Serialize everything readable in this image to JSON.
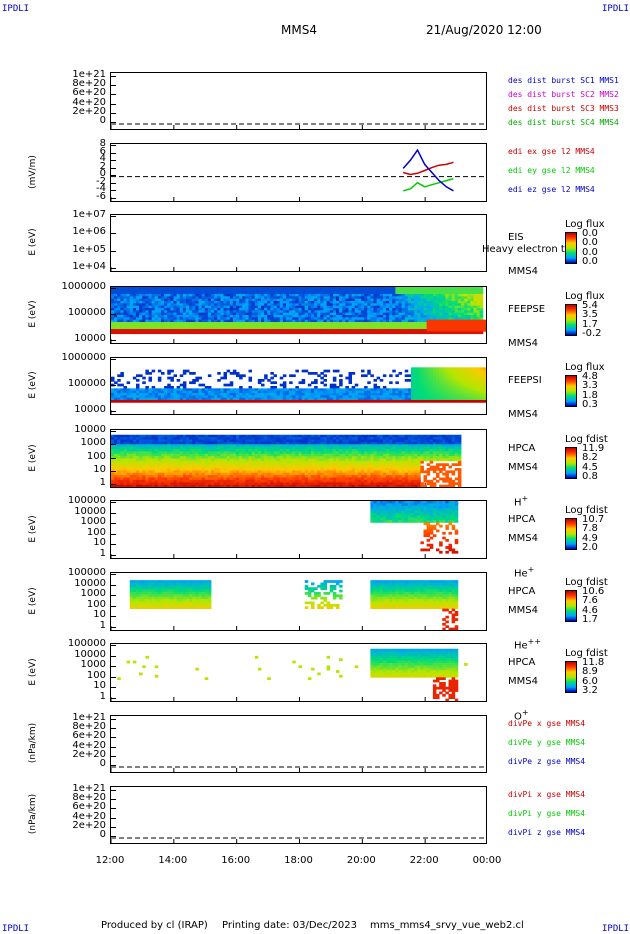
{
  "header": {
    "corner_label": "IPDLI",
    "spacecraft": "MMS4",
    "datetime": "21/Aug/2020 12:00"
  },
  "footer": {
    "produced_by": "Produced by cl (IRAP)",
    "printing_date": "Printing date: 03/Dec/2023",
    "script": "mms_mms4_srvy_vue_web2.cl"
  },
  "x_axis": {
    "ticks": [
      "12:00",
      "14:00",
      "16:00",
      "18:00",
      "20:00",
      "22:00",
      "00:00"
    ],
    "tick_hours": [
      12,
      14,
      16,
      18,
      20,
      22,
      24
    ]
  },
  "chart_data": [
    {
      "type": "line",
      "panel": "des dist burst",
      "ylabel": "",
      "yticks": [
        "1e+21",
        "8e+20",
        "6e+20",
        "4e+20",
        "2e+20",
        "0"
      ],
      "series": [
        {
          "name": "des dist burst SC1 MMS1",
          "color": "#0000cc"
        },
        {
          "name": "des dist burst SC2 MMS2",
          "color": "#cc00cc"
        },
        {
          "name": "des dist burst SC3 MMS3",
          "color": "#cc0000"
        },
        {
          "name": "des dist burst SC4 MMS4",
          "color": "#00aa00"
        }
      ]
    },
    {
      "type": "line",
      "panel": "edi e gse",
      "ylabel": "(mV/m)",
      "yticks": [
        "8",
        "6",
        "4",
        "2",
        "0",
        "-2",
        "-4",
        "-6"
      ],
      "ylim": [
        -6,
        8
      ],
      "x_range_hours": [
        21.3,
        22.9
      ],
      "series": [
        {
          "name": "edi ex gse l2 MMS4",
          "color": "#cc0000",
          "values": [
            1,
            0.5,
            0.8,
            1.5,
            2.2,
            2.8,
            3.0,
            3.5
          ]
        },
        {
          "name": "edi ey gse l2 MMS4",
          "color": "#00cc00",
          "values": [
            -3.5,
            -3,
            -1.5,
            -2.5,
            -2,
            -1.5,
            -1,
            -0.5
          ]
        },
        {
          "name": "edi ez gse l2 MMS4",
          "color": "#0000cc",
          "values": [
            2,
            4,
            6.5,
            3,
            1,
            -1,
            -2.5,
            -3.5
          ]
        }
      ]
    },
    {
      "type": "heatmap",
      "panel": "EIS",
      "ylabel": "E (eV)",
      "yticks": [
        "1e+07",
        "1e+06",
        "1e+05",
        "1e+04"
      ],
      "instrument": "EIS",
      "instrument_sub": "Heavy electron to",
      "spacecraft": "MMS4",
      "colorbar_title": "Log flux",
      "colorbar_values": [
        "0.0",
        "0.0",
        "0.0",
        "0.0"
      ]
    },
    {
      "type": "heatmap",
      "panel": "FEEPSE",
      "ylabel": "E (eV)",
      "yticks": [
        "1000000",
        "100000",
        "10000"
      ],
      "instrument": "FEEPSE",
      "spacecraft": "MMS4",
      "colorbar_title": "Log flux",
      "colorbar_values": [
        "5.4",
        "3.5",
        "1.7",
        "-0.2"
      ]
    },
    {
      "type": "heatmap",
      "panel": "FEEPSI",
      "ylabel": "E (eV)",
      "yticks": [
        "1000000",
        "100000",
        "10000"
      ],
      "instrument": "FEEPSI",
      "spacecraft": "MMS4",
      "colorbar_title": "Log flux",
      "colorbar_values": [
        "4.8",
        "3.3",
        "1.8",
        "0.3"
      ]
    },
    {
      "type": "heatmap",
      "panel": "HPCA H+",
      "ylabel": "E (eV)",
      "yticks": [
        "10000",
        "1000",
        "100",
        "10",
        "1"
      ],
      "instrument": "HPCA",
      "spacecraft": "MMS4",
      "species": "H",
      "species_sup": "+",
      "colorbar_title": "Log fdist",
      "colorbar_values": [
        "11.9",
        "8.2",
        "4.5",
        "0.8"
      ]
    },
    {
      "type": "heatmap",
      "panel": "HPCA He+",
      "ylabel": "E (eV)",
      "yticks": [
        "100000",
        "10000",
        "1000",
        "100",
        "10",
        "1"
      ],
      "instrument": "HPCA",
      "spacecraft": "MMS4",
      "species": "He",
      "species_sup": "+",
      "colorbar_title": "Log fdist",
      "colorbar_values": [
        "10.7",
        "7.8",
        "4.9",
        "2.0"
      ]
    },
    {
      "type": "heatmap",
      "panel": "HPCA He++",
      "ylabel": "E (eV)",
      "yticks": [
        "100000",
        "10000",
        "1000",
        "100",
        "10",
        "1"
      ],
      "instrument": "HPCA",
      "spacecraft": "MMS4",
      "species": "He",
      "species_sup": "++",
      "colorbar_title": "Log fdist",
      "colorbar_values": [
        "10.6",
        "7.6",
        "4.6",
        "1.7"
      ]
    },
    {
      "type": "heatmap",
      "panel": "HPCA O+",
      "ylabel": "E (eV)",
      "yticks": [
        "100000",
        "10000",
        "1000",
        "100",
        "10",
        "1"
      ],
      "instrument": "HPCA",
      "spacecraft": "MMS4",
      "species": "O",
      "species_sup": "+",
      "colorbar_title": "Log fdist",
      "colorbar_values": [
        "11.8",
        "8.9",
        "6.0",
        "3.2"
      ]
    },
    {
      "type": "line",
      "panel": "divPe",
      "ylabel": "(nPa/km)",
      "yticks": [
        "1e+21",
        "8e+20",
        "6e+20",
        "4e+20",
        "2e+20",
        "0"
      ],
      "series": [
        {
          "name": "divPe x gse MMS4",
          "color": "#cc0000"
        },
        {
          "name": "divPe y gse MMS4",
          "color": "#00cc00"
        },
        {
          "name": "divPe z gse MMS4",
          "color": "#0000cc"
        }
      ]
    },
    {
      "type": "line",
      "panel": "divPi",
      "ylabel": "(nPa/km)",
      "yticks": [
        "1e+21",
        "8e+20",
        "6e+20",
        "4e+20",
        "2e+20",
        "0"
      ],
      "series": [
        {
          "name": "divPi x gse MMS4",
          "color": "#cc0000"
        },
        {
          "name": "divPi y gse MMS4",
          "color": "#00cc00"
        },
        {
          "name": "divPi z gse MMS4",
          "color": "#0000cc"
        }
      ]
    }
  ]
}
